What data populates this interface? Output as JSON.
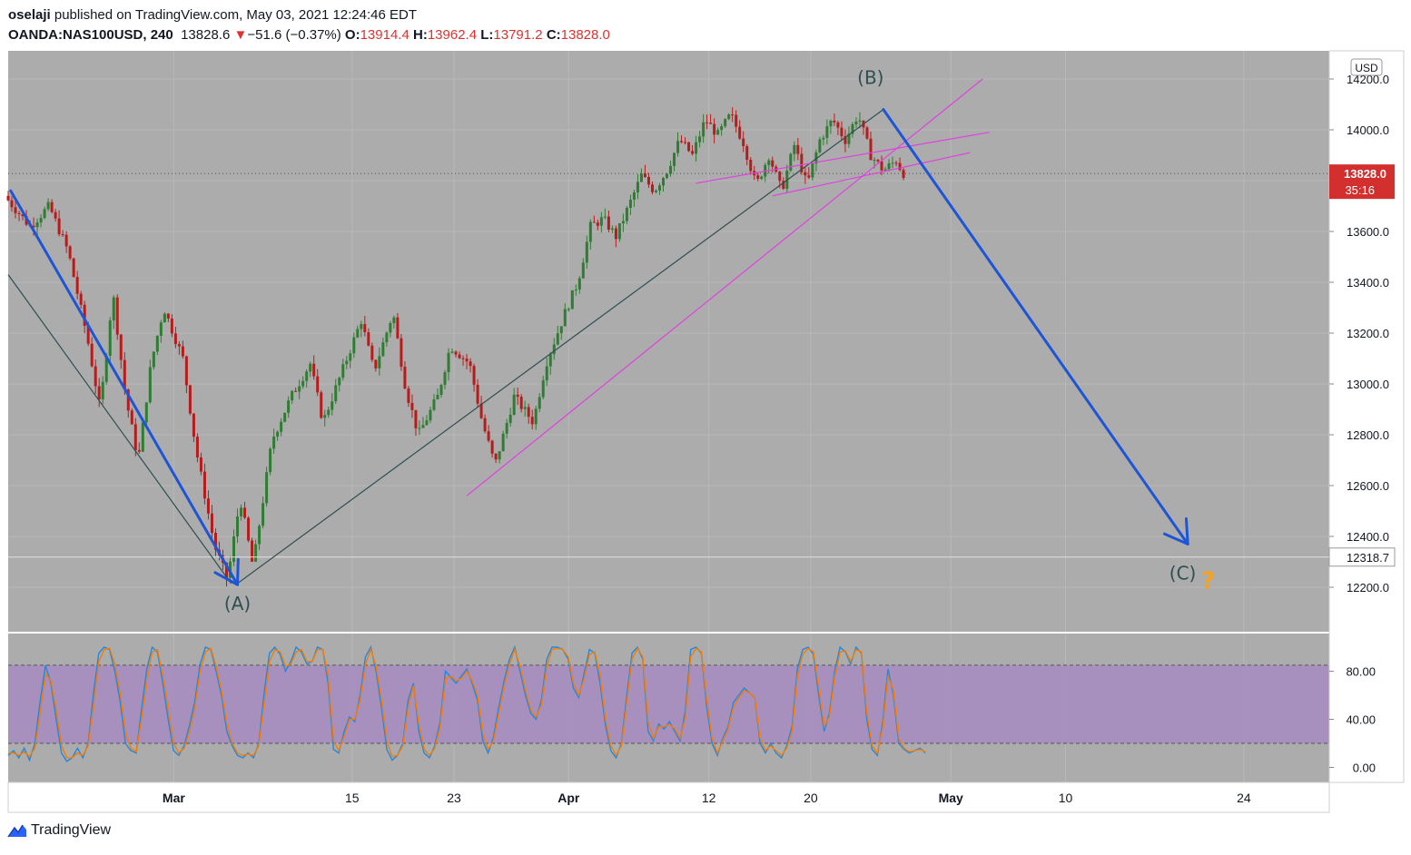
{
  "header": {
    "author": "oselaji",
    "published_text": "published on TradingView.com, May 03, 2021 12:24:46 EDT",
    "symbol": "OANDA:NAS100USD, 240",
    "last": "13828.6",
    "change_arrow": "▼",
    "change": "−51.6 (−0.37%)",
    "o_label": "O:",
    "o": "13914.4",
    "h_label": "H:",
    "h": "13962.4",
    "l_label": "L:",
    "l": "13791.2",
    "c_label": "C:",
    "c": "13828.0"
  },
  "footer": {
    "brand": "TradingView",
    "icon": "tradingview-logo-icon"
  },
  "colors": {
    "plot_bg": "#acacac",
    "up": "#2e7d32",
    "down": "#b71c1c",
    "wave_arrow": "#1e55d6",
    "channel": "#e040e0",
    "trend": "#2f4f4f",
    "stoch_k": "#1e88e5",
    "stoch_d": "#f57c00",
    "stoch_band": "#a689c1",
    "price_label_bg": "#d32f2f",
    "question": "#f7a21b"
  },
  "chart_data": [
    {
      "type": "candlestick",
      "symbol": "OANDA:NAS100USD",
      "interval": "240",
      "currency": "USD",
      "y_ticks": [
        "14200.0",
        "14000.0",
        "13800.0",
        "13600.0",
        "13400.0",
        "13200.0",
        "13000.0",
        "12800.0",
        "12600.0",
        "12400.0",
        "12200.0"
      ],
      "ylim": [
        12020,
        14290
      ],
      "x_ticks": [
        {
          "label": "Mar",
          "day": 13
        },
        {
          "label": "15",
          "day": 27
        },
        {
          "label": "23",
          "day": 35
        },
        {
          "label": "Apr",
          "day": 44
        },
        {
          "label": "12",
          "day": 55
        },
        {
          "label": "20",
          "day": 63
        },
        {
          "label": "May",
          "day": 74
        },
        {
          "label": "10",
          "day": 83
        },
        {
          "label": "24",
          "day": 97
        }
      ],
      "last_price_label": "13828.0",
      "countdown": "35:16",
      "level_label": "12318.7",
      "level_price": 12318.7,
      "key_points": [
        {
          "day": 0,
          "price": 13740
        },
        {
          "day": 2,
          "price": 13620
        },
        {
          "day": 3.5,
          "price": 13700
        },
        {
          "day": 5,
          "price": 13520
        },
        {
          "day": 6.5,
          "price": 13180
        },
        {
          "day": 7.5,
          "price": 12900
        },
        {
          "day": 8.5,
          "price": 13360
        },
        {
          "day": 9.5,
          "price": 12950
        },
        {
          "day": 10.5,
          "price": 12700
        },
        {
          "day": 11.5,
          "price": 13080
        },
        {
          "day": 12.5,
          "price": 13300
        },
        {
          "day": 14,
          "price": 13100
        },
        {
          "day": 15,
          "price": 12750
        },
        {
          "day": 16.5,
          "price": 12360
        },
        {
          "day": 17.5,
          "price": 12230
        },
        {
          "day": 18.5,
          "price": 12550
        },
        {
          "day": 19.5,
          "price": 12280
        },
        {
          "day": 21,
          "price": 12780
        },
        {
          "day": 22.5,
          "price": 12950
        },
        {
          "day": 24,
          "price": 13080
        },
        {
          "day": 25,
          "price": 12850
        },
        {
          "day": 26.5,
          "price": 13050
        },
        {
          "day": 28,
          "price": 13250
        },
        {
          "day": 29,
          "price": 13050
        },
        {
          "day": 30.5,
          "price": 13280
        },
        {
          "day": 31.5,
          "price": 12980
        },
        {
          "day": 32.5,
          "price": 12800
        },
        {
          "day": 34,
          "price": 12950
        },
        {
          "day": 35,
          "price": 13150
        },
        {
          "day": 36.5,
          "price": 13080
        },
        {
          "day": 37.5,
          "price": 12850
        },
        {
          "day": 38.5,
          "price": 12680
        },
        {
          "day": 40,
          "price": 12950
        },
        {
          "day": 41.5,
          "price": 12850
        },
        {
          "day": 42.5,
          "price": 13080
        },
        {
          "day": 44,
          "price": 13280
        },
        {
          "day": 45,
          "price": 13400
        },
        {
          "day": 46,
          "price": 13620
        },
        {
          "day": 47,
          "price": 13650
        },
        {
          "day": 48,
          "price": 13580
        },
        {
          "day": 49,
          "price": 13700
        },
        {
          "day": 50,
          "price": 13820
        },
        {
          "day": 51,
          "price": 13760
        },
        {
          "day": 52,
          "price": 13840
        },
        {
          "day": 53,
          "price": 13960
        },
        {
          "day": 54,
          "price": 13900
        },
        {
          "day": 55,
          "price": 14040
        },
        {
          "day": 56,
          "price": 13980
        },
        {
          "day": 57,
          "price": 14060
        },
        {
          "day": 58,
          "price": 13950
        },
        {
          "day": 59,
          "price": 13780
        },
        {
          "day": 60,
          "price": 13900
        },
        {
          "day": 61,
          "price": 13760
        },
        {
          "day": 62,
          "price": 13940
        },
        {
          "day": 63,
          "price": 13780
        },
        {
          "day": 64,
          "price": 13960
        },
        {
          "day": 65,
          "price": 14040
        },
        {
          "day": 66,
          "price": 13960
        },
        {
          "day": 67,
          "price": 14060
        },
        {
          "day": 68,
          "price": 13900
        },
        {
          "day": 69,
          "price": 13840
        },
        {
          "day": 70,
          "price": 13880
        },
        {
          "day": 70.5,
          "price": 13830
        }
      ],
      "annotations": [
        {
          "text": "(A)",
          "day": 18,
          "price": 12110
        },
        {
          "text": "(B)",
          "day": 67.7,
          "price": 14180
        },
        {
          "text": "(C)",
          "day": 92.2,
          "price": 12230
        },
        {
          "text": "?",
          "day": 94.2,
          "price": 12195
        }
      ],
      "wave_arrows": [
        {
          "from": {
            "day": 0.2,
            "price": 13760
          },
          "to": {
            "day": 18,
            "price": 12210
          }
        },
        {
          "from": {
            "day": 68.7,
            "price": 14080
          },
          "to": {
            "day": 92.6,
            "price": 12370
          }
        }
      ],
      "lines": [
        {
          "kind": "trend",
          "from": {
            "day": 0,
            "price": 13430
          },
          "to": {
            "day": 17.5,
            "price": 12215
          }
        },
        {
          "kind": "trend",
          "from": {
            "day": 18,
            "price": 12215
          },
          "to": {
            "day": 68.7,
            "price": 14080
          }
        },
        {
          "kind": "trend",
          "from": {
            "day": 68.7,
            "price": 14080
          },
          "to": {
            "day": 92.6,
            "price": 12370
          }
        },
        {
          "kind": "channel",
          "from": {
            "day": 36,
            "price": 12560
          },
          "to": {
            "day": 76.5,
            "price": 14200
          }
        },
        {
          "kind": "channel",
          "from": {
            "day": 54,
            "price": 13790
          },
          "to": {
            "day": 77,
            "price": 13990
          }
        },
        {
          "kind": "channel",
          "from": {
            "day": 60,
            "price": 13740
          },
          "to": {
            "day": 75.5,
            "price": 13910
          }
        }
      ]
    },
    {
      "type": "line",
      "indicator": "stochastic",
      "y_ticks": [
        "80.00",
        "40.00",
        "0.00"
      ],
      "ylim": [
        -6,
        106
      ],
      "bands": [
        20,
        85
      ],
      "series": [
        {
          "values": [
            10,
            14,
            8,
            16,
            6,
            20,
            55,
            85,
            70,
            40,
            12,
            5,
            8,
            16,
            8,
            20,
            62,
            95,
            100,
            98,
            80,
            55,
            20,
            14,
            12,
            48,
            82,
            100,
            96,
            70,
            40,
            14,
            10,
            18,
            35,
            55,
            86,
            100,
            98,
            80,
            60,
            30,
            18,
            10,
            8,
            12,
            8,
            20,
            62,
            95,
            100,
            94,
            80,
            88,
            100,
            96,
            86,
            88,
            100,
            98,
            70,
            15,
            12,
            30,
            42,
            38,
            60,
            92,
            100,
            80,
            50,
            15,
            6,
            10,
            20,
            56,
            70,
            30,
            12,
            8,
            18,
            38,
            80,
            75,
            70,
            76,
            82,
            70,
            56,
            22,
            12,
            25,
            50,
            72,
            90,
            100,
            80,
            60,
            45,
            40,
            56,
            90,
            100,
            100,
            98,
            90,
            66,
            58,
            78,
            98,
            95,
            70,
            35,
            14,
            8,
            20,
            60,
            95,
            100,
            90,
            30,
            22,
            36,
            32,
            38,
            30,
            22,
            48,
            98,
            100,
            95,
            50,
            20,
            10,
            24,
            34,
            54,
            60,
            66,
            62,
            58,
            20,
            12,
            20,
            12,
            8,
            18,
            34,
            82,
            98,
            100,
            94,
            60,
            30,
            45,
            80,
            100,
            96,
            86,
            100,
            95,
            40,
            15,
            10,
            38,
            82,
            60,
            20,
            15,
            12,
            14,
            16,
            12
          ]
        },
        {
          "values": [
            12,
            12,
            10,
            13,
            9,
            16,
            45,
            78,
            72,
            48,
            18,
            8,
            8,
            12,
            10,
            18,
            52,
            88,
            98,
            99,
            86,
            62,
            28,
            16,
            13,
            40,
            74,
            96,
            98,
            76,
            48,
            20,
            12,
            16,
            30,
            50,
            80,
            96,
            99,
            84,
            64,
            36,
            20,
            12,
            10,
            11,
            10,
            18,
            54,
            88,
            98,
            96,
            84,
            86,
            96,
            98,
            88,
            88,
            98,
            98,
            76,
            22,
            14,
            26,
            40,
            40,
            56,
            86,
            98,
            84,
            56,
            22,
            9,
            10,
            18,
            50,
            68,
            36,
            15,
            10,
            16,
            34,
            74,
            76,
            72,
            74,
            80,
            72,
            60,
            28,
            15,
            22,
            45,
            68,
            86,
            98,
            84,
            64,
            48,
            42,
            52,
            84,
            98,
            99,
            98,
            92,
            70,
            60,
            74,
            94,
            96,
            76,
            40,
            18,
            10,
            18,
            54,
            90,
            99,
            92,
            38,
            24,
            34,
            34,
            36,
            32,
            24,
            42,
            92,
            99,
            96,
            56,
            24,
            12,
            22,
            32,
            50,
            58,
            64,
            62,
            58,
            24,
            14,
            18,
            14,
            10,
            16,
            30,
            76,
            94,
            99,
            96,
            66,
            34,
            42,
            76,
            96,
            97,
            88,
            98,
            96,
            46,
            18,
            12,
            34,
            76,
            64,
            24,
            16,
            13,
            14,
            15,
            13
          ]
        }
      ]
    }
  ]
}
